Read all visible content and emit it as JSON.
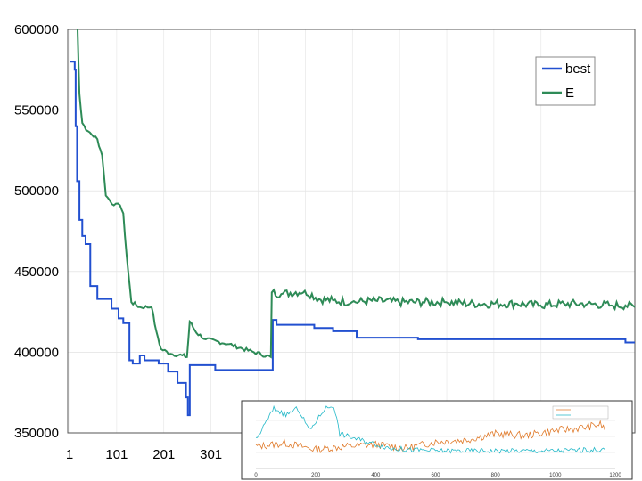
{
  "chart_data": [
    {
      "type": "line",
      "title": "",
      "xlabel": "",
      "ylabel": "",
      "xlim": [
        1,
        1200
      ],
      "ylim": [
        350000,
        600000
      ],
      "x_ticks": [
        "1",
        "101",
        "201",
        "301"
      ],
      "y_ticks": [
        "600000",
        "550000",
        "500000",
        "450000",
        "400000",
        "350000"
      ],
      "grid": true,
      "legend": "top-right",
      "series": [
        {
          "name": "best",
          "color": "#2250d0",
          "points": [
            [
              1,
              580000
            ],
            [
              10,
              580000
            ],
            [
              12,
              575000
            ],
            [
              14,
              540000
            ],
            [
              17,
              506000
            ],
            [
              22,
              482000
            ],
            [
              28,
              472000
            ],
            [
              35,
              467000
            ],
            [
              45,
              441000
            ],
            [
              60,
              433000
            ],
            [
              90,
              427000
            ],
            [
              105,
              421000
            ],
            [
              115,
              418000
            ],
            [
              128,
              395000
            ],
            [
              135,
              393000
            ],
            [
              150,
              398000
            ],
            [
              160,
              395000
            ],
            [
              190,
              393000
            ],
            [
              210,
              388000
            ],
            [
              230,
              381000
            ],
            [
              248,
              372000
            ],
            [
              252,
              361000
            ],
            [
              256,
              392000
            ],
            [
              300,
              392000
            ],
            [
              310,
              389000
            ],
            [
              430,
              389000
            ],
            [
              432,
              420000
            ],
            [
              440,
              417000
            ],
            [
              500,
              417000
            ],
            [
              520,
              415000
            ],
            [
              560,
              413000
            ],
            [
              610,
              409000
            ],
            [
              720,
              409000
            ],
            [
              740,
              408000
            ],
            [
              1175,
              408000
            ],
            [
              1180,
              406000
            ],
            [
              1200,
              406000
            ]
          ]
        },
        {
          "name": "E",
          "color": "#2e8b57",
          "points": [
            [
              18,
              600000
            ],
            [
              22,
              560000
            ],
            [
              28,
              542000
            ],
            [
              40,
              537000
            ],
            [
              60,
              532000
            ],
            [
              70,
              522000
            ],
            [
              78,
              497000
            ],
            [
              95,
              491000
            ],
            [
              108,
              491000
            ],
            [
              115,
              486000
            ],
            [
              122,
              460000
            ],
            [
              132,
              431000
            ],
            [
              150,
              428000
            ],
            [
              175,
              428000
            ],
            [
              185,
              413000
            ],
            [
              195,
              402000
            ],
            [
              215,
              399000
            ],
            [
              240,
              398000
            ],
            [
              250,
              397000
            ],
            [
              256,
              419000
            ],
            [
              270,
              412000
            ],
            [
              290,
              408000
            ],
            [
              340,
              405000
            ],
            [
              380,
              401000
            ],
            [
              428,
              397000
            ],
            [
              430,
              437000
            ],
            [
              450,
              436000
            ],
            [
              500,
              438000
            ],
            [
              530,
              433000
            ],
            [
              560,
              432000
            ],
            [
              600,
              431000
            ],
            [
              650,
              432000
            ],
            [
              700,
              431000
            ],
            [
              750,
              431000
            ],
            [
              800,
              431000
            ],
            [
              850,
              430000
            ],
            [
              900,
              430000
            ],
            [
              950,
              430000
            ],
            [
              1000,
              429000
            ],
            [
              1050,
              430000
            ],
            [
              1100,
              430000
            ],
            [
              1150,
              429000
            ],
            [
              1180,
              429000
            ],
            [
              1200,
              428000
            ]
          ]
        }
      ]
    },
    {
      "type": "line",
      "title": "",
      "xlabel": "",
      "ylabel": "",
      "xlim": [
        0,
        1200
      ],
      "x_ticks": [
        "0",
        "200",
        "400",
        "600",
        "800",
        "1000",
        "1200"
      ],
      "legend": "top-right",
      "series": [
        {
          "name": "",
          "color": "#e07a2a",
          "points": [
            [
              0,
              0.35
            ],
            [
              100,
              0.4
            ],
            [
              200,
              0.3
            ],
            [
              300,
              0.35
            ],
            [
              400,
              0.38
            ],
            [
              500,
              0.32
            ],
            [
              600,
              0.42
            ],
            [
              700,
              0.45
            ],
            [
              800,
              0.55
            ],
            [
              900,
              0.52
            ],
            [
              1000,
              0.6
            ],
            [
              1100,
              0.65
            ],
            [
              1150,
              0.7
            ],
            [
              1170,
              0.6
            ]
          ]
        },
        {
          "name": "",
          "color": "#22b8c8",
          "points": [
            [
              0,
              0.45
            ],
            [
              60,
              0.95
            ],
            [
              100,
              0.85
            ],
            [
              140,
              0.95
            ],
            [
              180,
              0.6
            ],
            [
              230,
              0.95
            ],
            [
              260,
              1.0
            ],
            [
              280,
              0.55
            ],
            [
              350,
              0.45
            ],
            [
              450,
              0.32
            ],
            [
              500,
              0.3
            ],
            [
              600,
              0.28
            ],
            [
              800,
              0.28
            ],
            [
              1000,
              0.28
            ],
            [
              1170,
              0.3
            ]
          ]
        }
      ]
    }
  ]
}
